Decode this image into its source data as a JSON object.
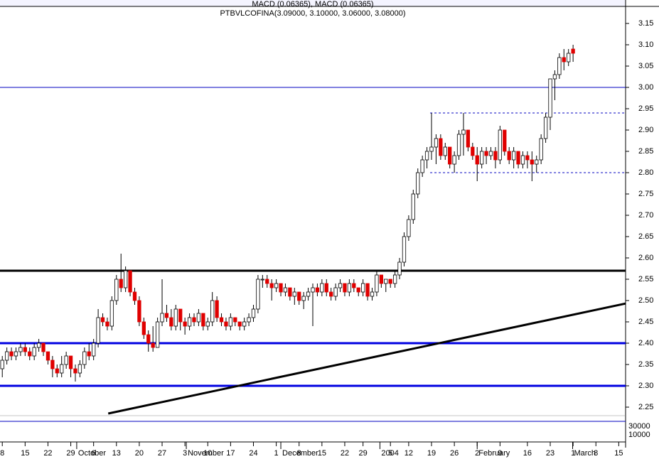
{
  "chart_data": {
    "type": "candlestick",
    "title": "PTBVLCOFINA(3.09000, 3.10000, 3.06000, 3.08000)",
    "subtitle": "MACD (0.06365), MACD (0.06365)",
    "ylim": [
      2.22,
      3.19
    ],
    "xlim": [
      -0.5,
      136.5
    ],
    "yticks": [
      {
        "value": 2.25,
        "label": "2.25"
      },
      {
        "value": 2.3,
        "label": "2.30"
      },
      {
        "value": 2.35,
        "label": "2.35"
      },
      {
        "value": 2.4,
        "label": "2.40"
      },
      {
        "value": 2.45,
        "label": "2.45"
      },
      {
        "value": 2.5,
        "label": "2.50"
      },
      {
        "value": 2.55,
        "label": "2.55"
      },
      {
        "value": 2.6,
        "label": "2.60"
      },
      {
        "value": 2.65,
        "label": "2.65"
      },
      {
        "value": 2.7,
        "label": "2.70"
      },
      {
        "value": 2.75,
        "label": "2.75"
      },
      {
        "value": 2.8,
        "label": "2.80"
      },
      {
        "value": 2.85,
        "label": "2.85"
      },
      {
        "value": 2.9,
        "label": "2.90"
      },
      {
        "value": 2.95,
        "label": "2.95"
      },
      {
        "value": 3.0,
        "label": "3.00"
      },
      {
        "value": 3.05,
        "label": "3.05"
      },
      {
        "value": 3.1,
        "label": "3.10"
      },
      {
        "value": 3.15,
        "label": "3.15"
      }
    ],
    "xticks": [
      {
        "value": 0,
        "label": "8"
      },
      {
        "value": 5,
        "label": "15"
      },
      {
        "value": 10,
        "label": "22"
      },
      {
        "value": 15,
        "label": "29"
      },
      {
        "value": 20,
        "label": "6"
      },
      {
        "value": 25,
        "label": "13"
      },
      {
        "value": 30,
        "label": "20"
      },
      {
        "value": 35,
        "label": "27"
      },
      {
        "value": 40,
        "label": "3"
      },
      {
        "value": 45,
        "label": "10"
      },
      {
        "value": 50,
        "label": "17"
      },
      {
        "value": 55,
        "label": "24"
      },
      {
        "value": 60,
        "label": "1"
      },
      {
        "value": 65,
        "label": "8"
      },
      {
        "value": 70,
        "label": "15"
      },
      {
        "value": 75,
        "label": "22"
      },
      {
        "value": 79,
        "label": "29"
      },
      {
        "value": 85,
        "label": "5"
      },
      {
        "value": 89,
        "label": "12"
      },
      {
        "value": 94,
        "label": "19"
      },
      {
        "value": 99,
        "label": "26"
      },
      {
        "value": 104,
        "label": "2"
      },
      {
        "value": 109,
        "label": "9"
      },
      {
        "value": 115,
        "label": "16"
      },
      {
        "value": 120,
        "label": "23"
      },
      {
        "value": 125,
        "label": "1"
      },
      {
        "value": 130,
        "label": "8"
      },
      {
        "value": 135,
        "label": "15"
      }
    ],
    "months": [
      {
        "value": 16.3,
        "label": "October"
      },
      {
        "value": 40.3,
        "label": "November"
      },
      {
        "value": 61,
        "label": "December"
      },
      {
        "value": 82.7,
        "label": "2004"
      },
      {
        "value": 104,
        "label": "February"
      },
      {
        "value": 124.9,
        "label": "March"
      }
    ],
    "up_color": "#ffffff",
    "down_color": "#e00000",
    "candles": [
      [
        2.34,
        2.37,
        2.32,
        2.36
      ],
      [
        2.36,
        2.39,
        2.35,
        2.38
      ],
      [
        2.38,
        2.39,
        2.36,
        2.37
      ],
      [
        2.37,
        2.39,
        2.36,
        2.38
      ],
      [
        2.38,
        2.4,
        2.37,
        2.39
      ],
      [
        2.39,
        2.4,
        2.37,
        2.38
      ],
      [
        2.38,
        2.39,
        2.36,
        2.37
      ],
      [
        2.37,
        2.4,
        2.36,
        2.39
      ],
      [
        2.39,
        2.41,
        2.38,
        2.4
      ],
      [
        2.4,
        2.4,
        2.37,
        2.38
      ],
      [
        2.38,
        2.38,
        2.35,
        2.36
      ],
      [
        2.36,
        2.37,
        2.32,
        2.34
      ],
      [
        2.34,
        2.35,
        2.32,
        2.33
      ],
      [
        2.33,
        2.37,
        2.32,
        2.35
      ],
      [
        2.35,
        2.38,
        2.34,
        2.37
      ],
      [
        2.37,
        2.37,
        2.32,
        2.34
      ],
      [
        2.34,
        2.35,
        2.31,
        2.33
      ],
      [
        2.33,
        2.36,
        2.32,
        2.35
      ],
      [
        2.35,
        2.39,
        2.34,
        2.38
      ],
      [
        2.38,
        2.4,
        2.36,
        2.37
      ],
      [
        2.37,
        2.41,
        2.36,
        2.4
      ],
      [
        2.4,
        2.48,
        2.39,
        2.46
      ],
      [
        2.46,
        2.47,
        2.44,
        2.45
      ],
      [
        2.45,
        2.46,
        2.43,
        2.44
      ],
      [
        2.44,
        2.51,
        2.43,
        2.5
      ],
      [
        2.5,
        2.56,
        2.49,
        2.55
      ],
      [
        2.55,
        2.61,
        2.52,
        2.53
      ],
      [
        2.53,
        2.58,
        2.52,
        2.57
      ],
      [
        2.57,
        2.57,
        2.51,
        2.52
      ],
      [
        2.52,
        2.53,
        2.49,
        2.5
      ],
      [
        2.5,
        2.51,
        2.44,
        2.45
      ],
      [
        2.45,
        2.46,
        2.41,
        2.42
      ],
      [
        2.42,
        2.43,
        2.38,
        2.4
      ],
      [
        2.4,
        2.44,
        2.38,
        2.39
      ],
      [
        2.39,
        2.46,
        2.39,
        2.45
      ],
      [
        2.45,
        2.55,
        2.44,
        2.47
      ],
      [
        2.47,
        2.49,
        2.45,
        2.46
      ],
      [
        2.46,
        2.48,
        2.43,
        2.44
      ],
      [
        2.44,
        2.49,
        2.43,
        2.48
      ],
      [
        2.48,
        2.48,
        2.43,
        2.45
      ],
      [
        2.45,
        2.46,
        2.42,
        2.44
      ],
      [
        2.44,
        2.47,
        2.43,
        2.46
      ],
      [
        2.46,
        2.47,
        2.44,
        2.45
      ],
      [
        2.45,
        2.48,
        2.44,
        2.47
      ],
      [
        2.47,
        2.47,
        2.43,
        2.44
      ],
      [
        2.44,
        2.46,
        2.43,
        2.45
      ],
      [
        2.45,
        2.52,
        2.44,
        2.5
      ],
      [
        2.5,
        2.51,
        2.45,
        2.46
      ],
      [
        2.46,
        2.47,
        2.44,
        2.45
      ],
      [
        2.45,
        2.46,
        2.43,
        2.44
      ],
      [
        2.44,
        2.47,
        2.43,
        2.46
      ],
      [
        2.46,
        2.46,
        2.44,
        2.45
      ],
      [
        2.45,
        2.45,
        2.43,
        2.44
      ],
      [
        2.44,
        2.46,
        2.43,
        2.45
      ],
      [
        2.45,
        2.47,
        2.44,
        2.46
      ],
      [
        2.46,
        2.49,
        2.45,
        2.48
      ],
      [
        2.48,
        2.56,
        2.47,
        2.55
      ],
      [
        2.55,
        2.56,
        2.53,
        2.55
      ],
      [
        2.55,
        2.56,
        2.53,
        2.54
      ],
      [
        2.54,
        2.55,
        2.5,
        2.53
      ],
      [
        2.53,
        2.55,
        2.52,
        2.54
      ],
      [
        2.54,
        2.54,
        2.51,
        2.52
      ],
      [
        2.52,
        2.54,
        2.51,
        2.53
      ],
      [
        2.53,
        2.53,
        2.5,
        2.51
      ],
      [
        2.51,
        2.53,
        2.49,
        2.52
      ],
      [
        2.52,
        2.52,
        2.49,
        2.5
      ],
      [
        2.5,
        2.52,
        2.48,
        2.51
      ],
      [
        2.51,
        2.53,
        2.5,
        2.52
      ],
      [
        2.52,
        2.54,
        2.44,
        2.53
      ],
      [
        2.53,
        2.54,
        2.51,
        2.52
      ],
      [
        2.52,
        2.55,
        2.51,
        2.54
      ],
      [
        2.54,
        2.55,
        2.51,
        2.52
      ],
      [
        2.52,
        2.53,
        2.5,
        2.51
      ],
      [
        2.51,
        2.54,
        2.5,
        2.53
      ],
      [
        2.53,
        2.55,
        2.52,
        2.54
      ],
      [
        2.54,
        2.54,
        2.51,
        2.52
      ],
      [
        2.52,
        2.55,
        2.51,
        2.54
      ],
      [
        2.54,
        2.55,
        2.52,
        2.53
      ],
      [
        2.53,
        2.53,
        2.51,
        2.52
      ],
      [
        2.52,
        2.55,
        2.51,
        2.54
      ],
      [
        2.54,
        2.54,
        2.5,
        2.51
      ],
      [
        2.51,
        2.53,
        2.5,
        2.52
      ],
      [
        2.52,
        2.57,
        2.51,
        2.56
      ],
      [
        2.56,
        2.56,
        2.53,
        2.54
      ],
      [
        2.54,
        2.55,
        2.52,
        2.55
      ],
      [
        2.55,
        2.55,
        2.53,
        2.54
      ],
      [
        2.54,
        2.57,
        2.53,
        2.56
      ],
      [
        2.56,
        2.6,
        2.55,
        2.59
      ],
      [
        2.59,
        2.66,
        2.58,
        2.65
      ],
      [
        2.65,
        2.7,
        2.64,
        2.69
      ],
      [
        2.69,
        2.76,
        2.68,
        2.75
      ],
      [
        2.75,
        2.81,
        2.74,
        2.8
      ],
      [
        2.8,
        2.84,
        2.79,
        2.83
      ],
      [
        2.83,
        2.86,
        2.81,
        2.85
      ],
      [
        2.85,
        2.94,
        2.83,
        2.86
      ],
      [
        2.86,
        2.89,
        2.82,
        2.88
      ],
      [
        2.88,
        2.89,
        2.83,
        2.84
      ],
      [
        2.84,
        2.87,
        2.83,
        2.86
      ],
      [
        2.86,
        2.86,
        2.81,
        2.82
      ],
      [
        2.82,
        2.85,
        2.8,
        2.84
      ],
      [
        2.84,
        2.9,
        2.83,
        2.89
      ],
      [
        2.89,
        2.94,
        2.84,
        2.9
      ],
      [
        2.9,
        2.9,
        2.85,
        2.86
      ],
      [
        2.86,
        2.87,
        2.83,
        2.84
      ],
      [
        2.84,
        2.86,
        2.78,
        2.82
      ],
      [
        2.82,
        2.86,
        2.81,
        2.85
      ],
      [
        2.85,
        2.86,
        2.82,
        2.84
      ],
      [
        2.84,
        2.86,
        2.83,
        2.85
      ],
      [
        2.85,
        2.86,
        2.81,
        2.83
      ],
      [
        2.83,
        2.91,
        2.82,
        2.9
      ],
      [
        2.9,
        2.9,
        2.84,
        2.85
      ],
      [
        2.85,
        2.86,
        2.82,
        2.83
      ],
      [
        2.83,
        2.86,
        2.81,
        2.85
      ],
      [
        2.85,
        2.85,
        2.81,
        2.82
      ],
      [
        2.82,
        2.85,
        2.81,
        2.84
      ],
      [
        2.84,
        2.85,
        2.81,
        2.83
      ],
      [
        2.83,
        2.85,
        2.78,
        2.82
      ],
      [
        2.82,
        2.84,
        2.8,
        2.83
      ],
      [
        2.83,
        2.89,
        2.82,
        2.88
      ],
      [
        2.88,
        2.94,
        2.87,
        2.93
      ],
      [
        2.93,
        3.02,
        2.9,
        3.02
      ],
      [
        3.02,
        3.04,
        2.97,
        3.03
      ],
      [
        3.03,
        3.08,
        3.02,
        3.07
      ],
      [
        3.07,
        3.09,
        3.04,
        3.06
      ],
      [
        3.06,
        3.09,
        3.05,
        3.08
      ],
      [
        3.09,
        3.1,
        3.06,
        3.08
      ]
    ],
    "levels": [
      {
        "value": 3.0,
        "color": "#0000c0",
        "width": 1
      },
      {
        "value": 2.57,
        "color": "#000000",
        "width": 3
      },
      {
        "value": 2.4,
        "color": "#0000e0",
        "width": 3
      },
      {
        "value": 2.3,
        "color": "#0000e0",
        "width": 3
      },
      {
        "value": 2.94,
        "color": "#0000c0",
        "width": 1,
        "from": 93.7,
        "dashed": true
      },
      {
        "value": 2.8,
        "color": "#0000c0",
        "width": 1,
        "from": 93.7,
        "dashed": true
      }
    ],
    "trendline": {
      "x": [
        23.2,
        136.5
      ],
      "y": [
        2.235,
        2.493
      ],
      "color": "#000000"
    },
    "indicator_labels": [
      "30000",
      "10000"
    ]
  }
}
